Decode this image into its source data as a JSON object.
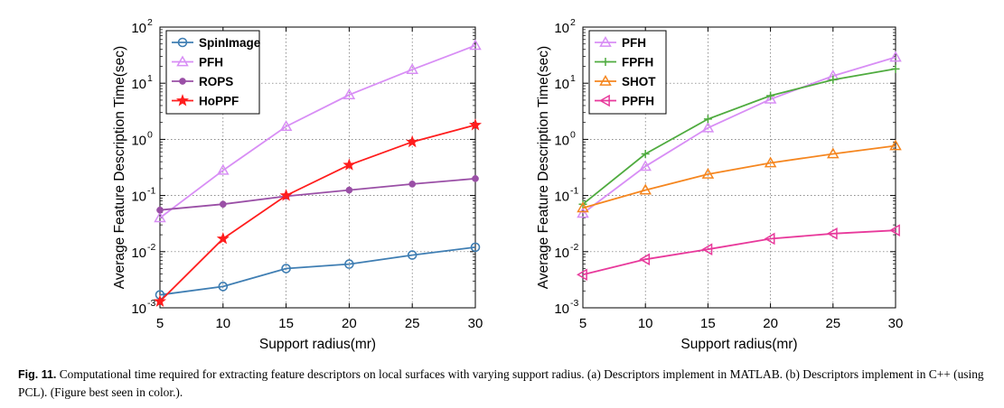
{
  "caption": {
    "label": "Fig. 11.",
    "text": "Computational time required for extracting feature descriptors on local surfaces with varying support radius. (a) Descriptors implement in MATLAB. (b) Descriptors implement in C++ (using PCL). (Figure best seen in color.)."
  },
  "chart_data": [
    {
      "type": "line",
      "xlabel": "Support radius(mr)",
      "ylabel": "Average Feature Description Time(sec)",
      "x": [
        5,
        10,
        15,
        20,
        25,
        30
      ],
      "xlim": [
        5,
        30
      ],
      "ylim": [
        0.001,
        100
      ],
      "yscale": "log",
      "xticks": [
        "5",
        "10",
        "15",
        "20",
        "25",
        "30"
      ],
      "yticks": [
        {
          "base": "10",
          "exp": "-3"
        },
        {
          "base": "10",
          "exp": "-2"
        },
        {
          "base": "10",
          "exp": "-1"
        },
        {
          "base": "10",
          "exp": "0"
        },
        {
          "base": "10",
          "exp": "1"
        },
        {
          "base": "10",
          "exp": "2"
        }
      ],
      "grid": true,
      "legend": "top-left",
      "series": [
        {
          "name": "SpinImage",
          "values": [
            0.0017,
            0.0024,
            0.005,
            0.006,
            0.0087,
            0.012
          ],
          "color": "#3f7eb3",
          "marker": "circle"
        },
        {
          "name": "PFH",
          "values": [
            0.04,
            0.28,
            1.7,
            6.2,
            17.5,
            47
          ],
          "color": "#d88ef5",
          "marker": "triangle-up"
        },
        {
          "name": "ROPS",
          "values": [
            0.055,
            0.07,
            0.097,
            0.125,
            0.16,
            0.2
          ],
          "color": "#9a4fa6",
          "marker": "dot"
        },
        {
          "name": "HoPPF",
          "values": [
            0.0013,
            0.017,
            0.1,
            0.35,
            0.9,
            1.8
          ],
          "color": "#ff1d1d",
          "marker": "star"
        }
      ]
    },
    {
      "type": "line",
      "xlabel": "Support radius(mr)",
      "ylabel": "Average Feature Description Time(sec)",
      "x": [
        5,
        10,
        15,
        20,
        25,
        30
      ],
      "xlim": [
        5,
        30
      ],
      "ylim": [
        0.001,
        100
      ],
      "yscale": "log",
      "xticks": [
        "5",
        "10",
        "15",
        "20",
        "25",
        "30"
      ],
      "yticks": [
        {
          "base": "10",
          "exp": "-3"
        },
        {
          "base": "10",
          "exp": "-2"
        },
        {
          "base": "10",
          "exp": "-1"
        },
        {
          "base": "10",
          "exp": "0"
        },
        {
          "base": "10",
          "exp": "1"
        },
        {
          "base": "10",
          "exp": "2"
        }
      ],
      "grid": true,
      "legend": "top-left",
      "series": [
        {
          "name": "PFH",
          "values": [
            0.048,
            0.33,
            1.6,
            5.2,
            13.5,
            29
          ],
          "color": "#d88ef5",
          "marker": "triangle-up"
        },
        {
          "name": "FPFH",
          "values": [
            0.07,
            0.55,
            2.3,
            6.0,
            11.5,
            18
          ],
          "color": "#4fab3f",
          "marker": "plus"
        },
        {
          "name": "SHOT",
          "values": [
            0.06,
            0.125,
            0.24,
            0.38,
            0.55,
            0.77
          ],
          "color": "#f5861f",
          "marker": "triangle-up"
        },
        {
          "name": "PPFH",
          "values": [
            0.0039,
            0.0073,
            0.011,
            0.017,
            0.021,
            0.024
          ],
          "color": "#e8399b",
          "marker": "triangle-left"
        }
      ]
    }
  ]
}
